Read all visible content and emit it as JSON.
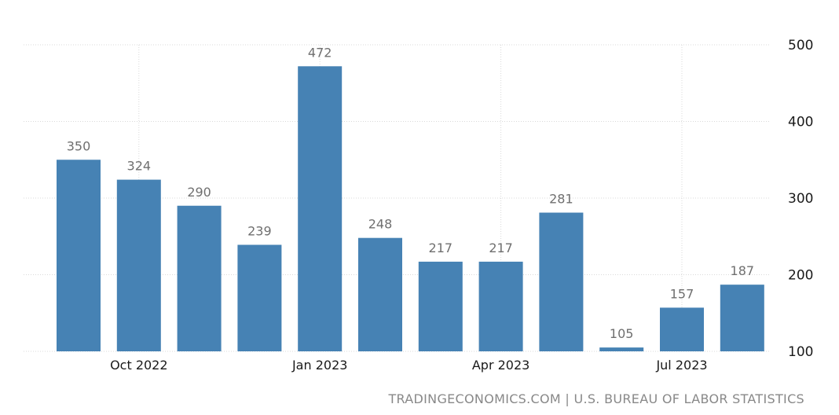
{
  "chart_data": {
    "type": "bar",
    "categories": [
      "Sep 2022",
      "Oct 2022",
      "Nov 2022",
      "Dec 2022",
      "Jan 2023",
      "Feb 2023",
      "Mar 2023",
      "Apr 2023",
      "May 2023",
      "Jun 2023",
      "Jul 2023",
      "Aug 2023"
    ],
    "values": [
      350,
      324,
      290,
      239,
      472,
      248,
      217,
      217,
      281,
      105,
      157,
      187
    ],
    "data_labels": [
      "350",
      "324",
      "290",
      "239",
      "472",
      "248",
      "217",
      "217",
      "281",
      "105",
      "157",
      "187"
    ],
    "x_tick_labels": [
      {
        "index": 1,
        "label": "Oct 2022"
      },
      {
        "index": 4,
        "label": "Jan 2023"
      },
      {
        "index": 7,
        "label": "Apr 2023"
      },
      {
        "index": 10,
        "label": "Jul 2023"
      }
    ],
    "y_ticks": [
      100,
      200,
      300,
      400,
      500
    ],
    "ylim": [
      100,
      500
    ],
    "y_axis_side": "right",
    "grid": true,
    "bar_color": "#4682b4",
    "title": "",
    "xlabel": "",
    "ylabel": ""
  },
  "source": "TRADINGECONOMICS.COM | U.S. BUREAU OF LABOR STATISTICS"
}
